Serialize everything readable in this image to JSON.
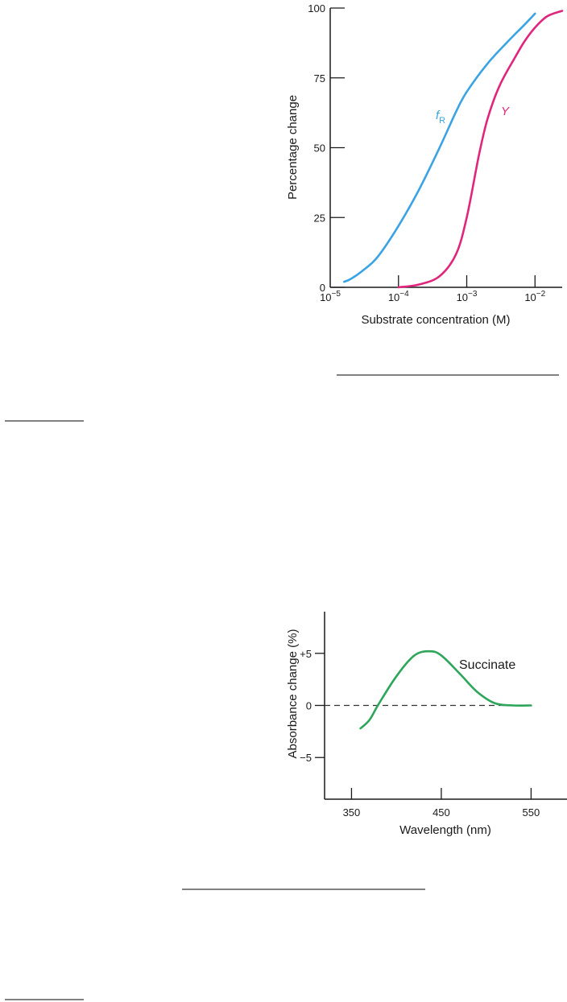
{
  "chart_data": [
    {
      "type": "line",
      "title": "",
      "xlabel": "Substrate concentration (M)",
      "ylabel": "Percentage change",
      "x_scale": "log",
      "xlim": [
        1e-05,
        0.025
      ],
      "ylim": [
        0,
        100
      ],
      "x_ticks": [
        {
          "value": 1e-05,
          "base": "10",
          "exp": "−5"
        },
        {
          "value": 0.0001,
          "base": "10",
          "exp": "−4"
        },
        {
          "value": 0.001,
          "base": "10",
          "exp": "−3"
        },
        {
          "value": 0.01,
          "base": "10",
          "exp": "−2"
        }
      ],
      "y_ticks": [
        "0",
        "25",
        "50",
        "75",
        "100"
      ],
      "grid": false,
      "series": [
        {
          "name": "fR",
          "label_main": "f",
          "label_sub": "R",
          "color": "#3aa3e3",
          "x": [
            1.6e-05,
            2e-05,
            3e-05,
            5e-05,
            0.0001,
            0.0002,
            0.0004,
            0.0007,
            0.001,
            0.002,
            0.004,
            0.007,
            0.01
          ],
          "y": [
            2,
            3,
            6,
            11,
            22,
            35,
            50,
            63,
            70,
            80,
            88,
            94,
            98
          ]
        },
        {
          "name": "Y",
          "label_main": "Y",
          "label_sub": "",
          "color": "#e0267c",
          "x": [
            0.0001,
            0.0002,
            0.0004,
            0.0007,
            0.001,
            0.0015,
            0.002,
            0.003,
            0.005,
            0.007,
            0.01,
            0.015,
            0.025
          ],
          "y": [
            0,
            1,
            4,
            12,
            25,
            47,
            60,
            72,
            82,
            88,
            93,
            97,
            99
          ]
        }
      ]
    },
    {
      "type": "line",
      "title": "",
      "xlabel": "Wavelength (nm)",
      "ylabel": "Absorbance change (%)",
      "xlim": [
        320,
        590
      ],
      "ylim": [
        -9,
        9
      ],
      "x_ticks": [
        "350",
        "450",
        "550"
      ],
      "y_ticks": [
        "+5",
        "0",
        "−5"
      ],
      "grid": false,
      "zero_line": "dashed",
      "series": [
        {
          "name": "Succinate",
          "color": "#2ea55a",
          "x": [
            360,
            370,
            380,
            400,
            420,
            437,
            450,
            470,
            490,
            510,
            530,
            550
          ],
          "y": [
            -2.2,
            -1.4,
            0.1,
            2.8,
            4.8,
            5.2,
            4.8,
            3.1,
            1.3,
            0.2,
            0,
            0
          ]
        }
      ]
    }
  ]
}
